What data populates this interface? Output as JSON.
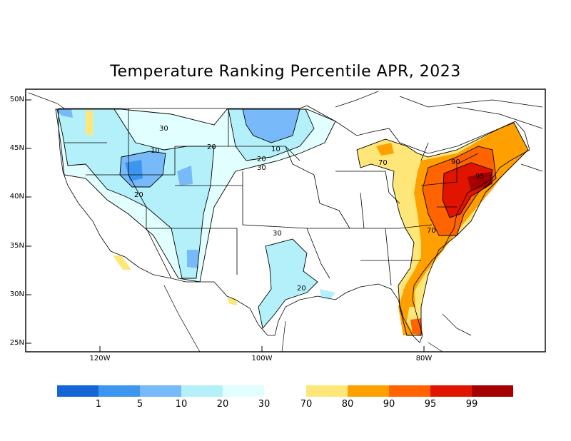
{
  "map": {
    "title": "Temperature Ranking Percentile APR, 2023",
    "lat_labels": [
      "50N",
      "45N",
      "40N",
      "35N",
      "30N",
      "25N"
    ],
    "lon_labels": [
      "120W",
      "100W",
      "80W"
    ],
    "contour_labels": [
      "30",
      "10",
      "20",
      "20",
      "10",
      "20",
      "30",
      "30",
      "20",
      "70",
      "90",
      "95",
      "70"
    ]
  },
  "legend": {
    "colors": [
      "#1466d4",
      "#3c96f0",
      "#78b9fa",
      "#b4f0fa",
      "#e1ffff",
      "#ffe678",
      "#ffa000",
      "#ff6400",
      "#e11400",
      "#a50000"
    ],
    "tick_labels": [
      "1",
      "5",
      "10",
      "20",
      "30",
      "70",
      "80",
      "90",
      "95",
      "99"
    ]
  }
}
